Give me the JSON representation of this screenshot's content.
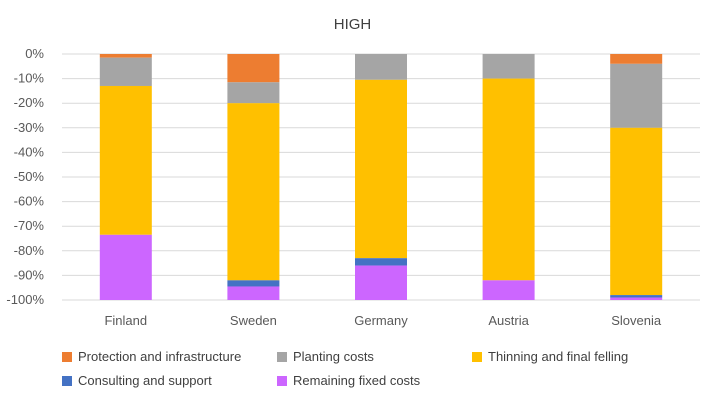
{
  "chart_data": {
    "type": "bar",
    "stacked": true,
    "title": "HIGH",
    "xlabel": "",
    "ylabel": "",
    "ylim": [
      -100,
      0
    ],
    "yticks": [
      0,
      -10,
      -20,
      -30,
      -40,
      -50,
      -60,
      -70,
      -80,
      -90,
      -100
    ],
    "ytick_labels": [
      "0%",
      "-10%",
      "-20%",
      "-30%",
      "-40%",
      "-50%",
      "-60%",
      "-70%",
      "-80%",
      "-90%",
      "-100%"
    ],
    "categories": [
      "Finland",
      "Sweden",
      "Germany",
      "Austria",
      "Slovenia"
    ],
    "grid": true,
    "legend_position": "bottom",
    "series": [
      {
        "name": "Protection and infrastructure",
        "color": "#ED7D31",
        "values": [
          -1.5,
          -11.5,
          0,
          0,
          -4
        ]
      },
      {
        "name": "Planting costs",
        "color": "#A5A5A5",
        "values": [
          -11.5,
          -8.5,
          -10.5,
          -10,
          -26
        ]
      },
      {
        "name": "Thinning and final felling",
        "color": "#FFC000",
        "values": [
          -60.5,
          -72,
          -72.5,
          -82,
          -68
        ]
      },
      {
        "name": "Consulting and support",
        "color": "#4472C4",
        "values": [
          0,
          -2.5,
          -3,
          0,
          -1
        ]
      },
      {
        "name": "Remaining fixed costs",
        "color": "#CC66FF",
        "values": [
          -26.5,
          -5.5,
          -14,
          -8,
          -1
        ]
      }
    ]
  }
}
